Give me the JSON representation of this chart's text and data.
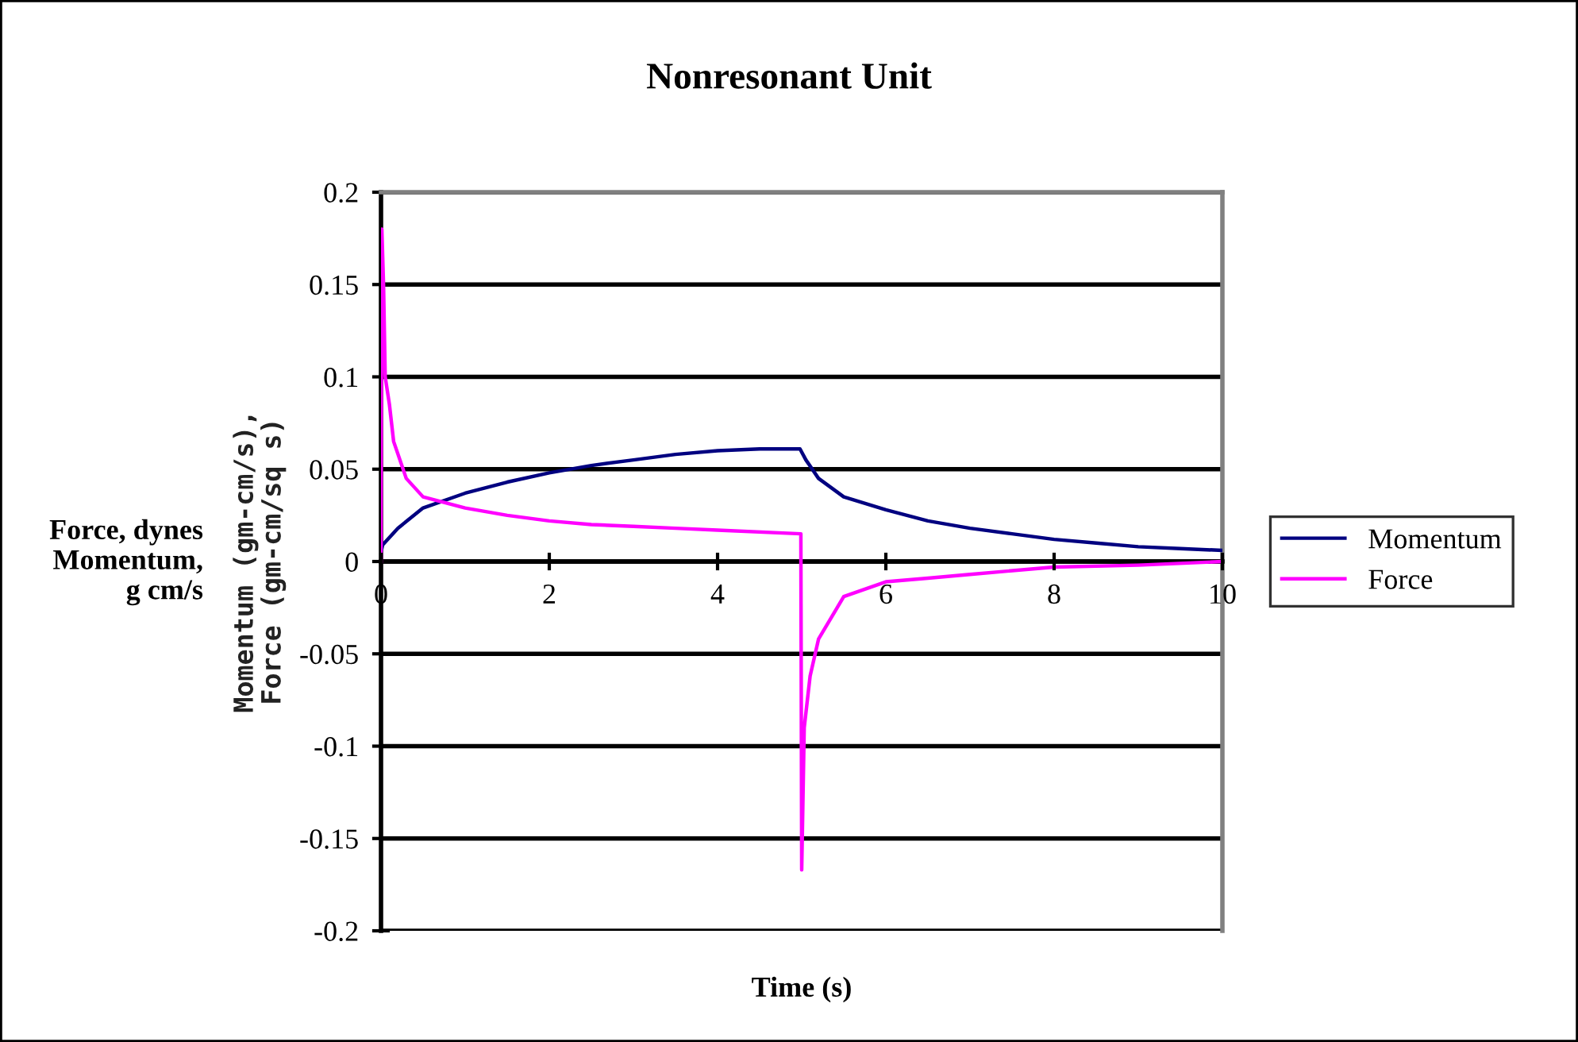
{
  "chart_data": {
    "type": "line",
    "title": "Nonresonant Unit",
    "xlabel": "Time (s)",
    "ylabel": "Momentum (gm-cm/s),\nForce (gm-cm/sq s)",
    "annotations": [
      "Force, dynes\nMomentum,\ng cm/s"
    ],
    "xlim": [
      0,
      10
    ],
    "xticks": [
      0,
      2,
      4,
      6,
      8,
      10
    ],
    "ylim": [
      -0.2,
      0.2
    ],
    "yticks": [
      -0.2,
      -0.15,
      -0.1,
      -0.05,
      0,
      0.05,
      0.1,
      0.15,
      0.2
    ],
    "grid": "y",
    "legend": "right",
    "line_style": "solid",
    "marker": "none",
    "series": [
      {
        "name": "Momentum",
        "color": "#000080",
        "x": [
          0,
          0.02,
          0.2,
          0.5,
          1,
          1.5,
          2,
          2.5,
          3,
          3.5,
          4,
          4.5,
          4.98,
          5.05,
          5.2,
          5.5,
          6,
          6.5,
          7,
          7.5,
          8,
          8.5,
          9,
          9.5,
          10
        ],
        "values": [
          0.005,
          0.009,
          0.018,
          0.029,
          0.037,
          0.043,
          0.048,
          0.052,
          0.055,
          0.058,
          0.06,
          0.061,
          0.061,
          0.055,
          0.045,
          0.035,
          0.028,
          0.022,
          0.018,
          0.015,
          0.012,
          0.01,
          0.008,
          0.007,
          0.006
        ]
      },
      {
        "name": "Force",
        "color": "#ff00ff",
        "x": [
          0,
          0.01,
          0.03,
          0.05,
          0.1,
          0.15,
          0.3,
          0.5,
          1,
          1.5,
          2,
          2.5,
          3,
          3.5,
          4,
          4.99,
          5,
          5.03,
          5.1,
          5.2,
          5.5,
          6,
          6.5,
          7,
          8,
          9,
          10
        ],
        "values": [
          0,
          0.18,
          0.15,
          0.1,
          0.085,
          0.065,
          0.045,
          0.035,
          0.029,
          0.025,
          0.022,
          0.02,
          0.019,
          0.018,
          0.017,
          0.015,
          -0.167,
          -0.09,
          -0.062,
          -0.042,
          -0.019,
          -0.011,
          -0.009,
          -0.007,
          -0.003,
          -0.002,
          0
        ]
      }
    ]
  }
}
